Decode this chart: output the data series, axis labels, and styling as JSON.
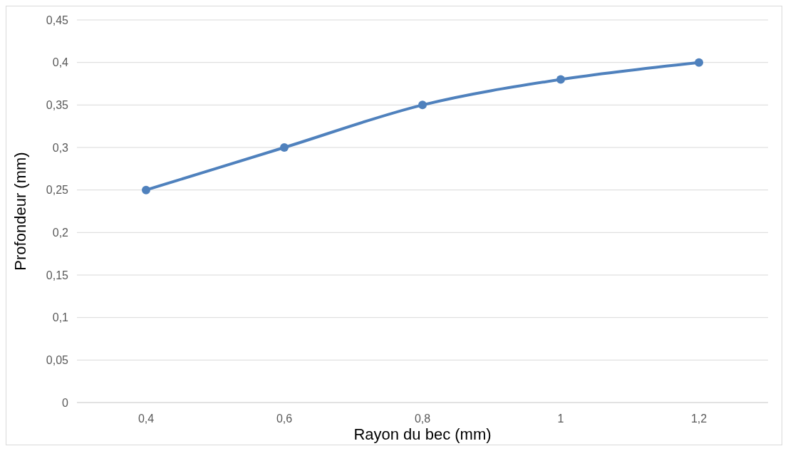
{
  "chart_data": {
    "type": "line",
    "xlabel": "Rayon du bec (mm)",
    "ylabel": "Profondeur (mm)",
    "categories": [
      "0,4",
      "0,6",
      "0,8",
      "1",
      "1,2"
    ],
    "series": [
      {
        "color": "#4f81bd",
        "values": [
          0.25,
          0.3,
          0.35,
          0.38,
          0.4
        ]
      }
    ],
    "ylim": [
      0,
      0.45
    ],
    "yticks": [
      0,
      {
        "value": 0.05,
        "label": "0,05"
      },
      {
        "value": 0.1,
        "label": "0,1"
      },
      {
        "value": 0.15,
        "label": "0,15"
      },
      {
        "value": 0.2,
        "label": "0,2"
      },
      {
        "value": 0.25,
        "label": "0,25"
      },
      {
        "value": 0.3,
        "label": "0,3"
      },
      {
        "value": 0.35,
        "label": "0,35"
      },
      {
        "value": 0.4,
        "label": "0,4"
      },
      {
        "value": 0.45,
        "label": "0,45"
      }
    ],
    "grid": "y",
    "marker": "circle",
    "line_style": "solid"
  }
}
